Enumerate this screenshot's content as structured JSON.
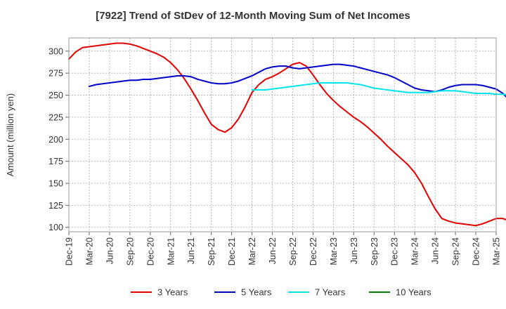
{
  "chart_data": {
    "type": "line",
    "title": "[7922]  Trend of StDev of 12-Month Moving Sum of Net Incomes",
    "xlabel": "",
    "ylabel": "Amount (million yen)",
    "ylim": [
      95,
      315
    ],
    "yticks": [
      100,
      125,
      150,
      175,
      200,
      225,
      250,
      275,
      300
    ],
    "xticks": [
      "Dec-19",
      "Mar-20",
      "Jun-20",
      "Sep-20",
      "Dec-20",
      "Mar-21",
      "Jun-21",
      "Sep-21",
      "Dec-21",
      "Mar-22",
      "Jun-22",
      "Sep-22",
      "Dec-22",
      "Mar-23",
      "Jun-23",
      "Sep-23",
      "Dec-23",
      "Mar-24",
      "Jun-24",
      "Sep-24",
      "Dec-24",
      "Mar-25"
    ],
    "grid": true,
    "legend_position": "bottom",
    "series": [
      {
        "name": "3 Years",
        "color": "#e00000",
        "start_month": "Dec-19",
        "values": [
          291,
          299,
          304,
          305,
          306,
          307,
          308,
          309,
          309,
          308,
          306,
          303,
          300,
          297,
          293,
          287,
          279,
          269,
          257,
          244,
          230,
          217,
          211,
          208,
          213,
          223,
          237,
          253,
          262,
          268,
          271,
          275,
          280,
          285,
          287,
          283,
          273,
          262,
          252,
          244,
          237,
          231,
          225,
          220,
          214,
          207,
          200,
          192,
          185,
          178,
          171,
          162,
          150,
          135,
          121,
          110,
          107,
          105,
          104,
          103,
          102,
          104,
          107,
          110,
          110,
          107,
          100
        ]
      },
      {
        "name": "5 Years",
        "color": "#0000cc",
        "start_month": "Dec-19",
        "values": [
          null,
          null,
          null,
          null,
          null,
          null,
          null,
          null,
          null,
          null,
          null,
          null,
          null,
          null,
          null,
          null,
          null,
          null,
          null,
          null,
          null,
          null,
          null,
          null,
          null,
          null,
          null,
          null,
          null,
          null,
          null,
          null,
          null,
          null,
          null,
          null,
          null,
          null,
          null,
          null,
          null,
          null,
          null,
          null,
          null,
          null,
          null,
          null,
          null,
          null,
          null,
          null,
          null,
          null,
          null,
          null,
          null,
          null,
          null,
          null,
          null,
          null,
          null,
          null,
          null,
          null,
          null
        ]
      },
      {
        "name": "7 Years",
        "color": "#00e5ee",
        "start_month": "Dec-19",
        "values": []
      },
      {
        "name": "10 Years",
        "color": "#008000",
        "start_month": "Dec-19",
        "values": []
      }
    ]
  }
}
